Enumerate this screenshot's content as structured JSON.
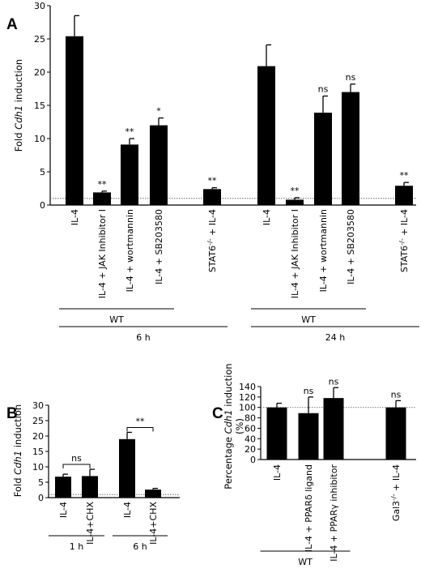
{
  "chart_data": [
    {
      "panel": "A",
      "type": "bar",
      "ylabel_prefix": "Fold ",
      "ylabel_gene": "Cdh1",
      "ylabel_suffix": " induction",
      "ylim": [
        0,
        30
      ],
      "yticks": [
        "0",
        "5",
        "10",
        "15",
        "20",
        "25",
        "30"
      ],
      "baseline": 1,
      "categories": [
        "IL-4",
        "IL-4 + JAK Inhibitor I",
        "IL-4 + wortmannin",
        "IL-4 + SB203580",
        "STAT6-/- + IL-4",
        "IL-4",
        "IL-4 + JAK Inhibitor I",
        "IL-4 + wortmannin",
        "IL-4 + SB203580",
        "STAT6-/- + IL-4"
      ],
      "values": [
        25.4,
        1.9,
        9.1,
        12.0,
        2.4,
        20.9,
        0.8,
        13.9,
        17.0,
        2.9
      ],
      "errors": [
        3.1,
        0.2,
        0.9,
        1.1,
        0.2,
        3.2,
        0.3,
        2.5,
        1.2,
        0.5
      ],
      "significance": [
        "",
        "**",
        "**",
        "*",
        "**",
        "",
        "**",
        "ns",
        "ns",
        "**"
      ],
      "groups": [
        {
          "label": "WT",
          "from": 0,
          "to": 3,
          "level": 1
        },
        {
          "label": "6 h",
          "from": 0,
          "to": 4,
          "level": 2
        },
        {
          "label": "WT",
          "from": 5,
          "to": 8,
          "level": 1
        },
        {
          "label": "24 h",
          "from": 5,
          "to": 9,
          "level": 2
        }
      ]
    },
    {
      "panel": "B",
      "type": "bar",
      "ylabel_prefix": "Fold ",
      "ylabel_gene": "Cdh1",
      "ylabel_suffix": " induction",
      "ylim": [
        0,
        30
      ],
      "yticks": [
        "0",
        "5",
        "10",
        "15",
        "20",
        "25",
        "30"
      ],
      "baseline": 1,
      "categories": [
        "IL-4",
        "IL-4+CHX",
        "IL-4",
        "IL-4+CHX"
      ],
      "values": [
        6.8,
        7.0,
        19.0,
        2.6
      ],
      "errors": [
        0.8,
        2.2,
        2.2,
        0.4
      ],
      "comparisons": [
        {
          "from": 0,
          "to": 1,
          "label": "ns"
        },
        {
          "from": 2,
          "to": 3,
          "label": "**"
        }
      ],
      "groups": [
        {
          "label": "1 h",
          "from": 0,
          "to": 1,
          "level": 1
        },
        {
          "label": "6 h",
          "from": 2,
          "to": 3,
          "level": 1
        }
      ]
    },
    {
      "panel": "C",
      "type": "bar",
      "ylabel_prefix": "Percentage ",
      "ylabel_gene": "Cdh1",
      "ylabel_suffix": " induction",
      "ylabel_line2": "(%)",
      "ylim": [
        0,
        140
      ],
      "yticks": [
        "0",
        "20",
        "40",
        "60",
        "80",
        "100",
        "120",
        "140"
      ],
      "baseline": 100,
      "categories": [
        "IL-4",
        "IL-4 + PPARδ ligand",
        "IL-4 + PPARγ inhibitor",
        "Gal3-/- + IL-4"
      ],
      "values": [
        100,
        89,
        118,
        100
      ],
      "errors": [
        8,
        31,
        20,
        13
      ],
      "significance": [
        "",
        "ns",
        "ns",
        "ns"
      ],
      "groups": [
        {
          "label": "WT",
          "from": 0,
          "to": 2,
          "level": 1
        }
      ]
    }
  ]
}
